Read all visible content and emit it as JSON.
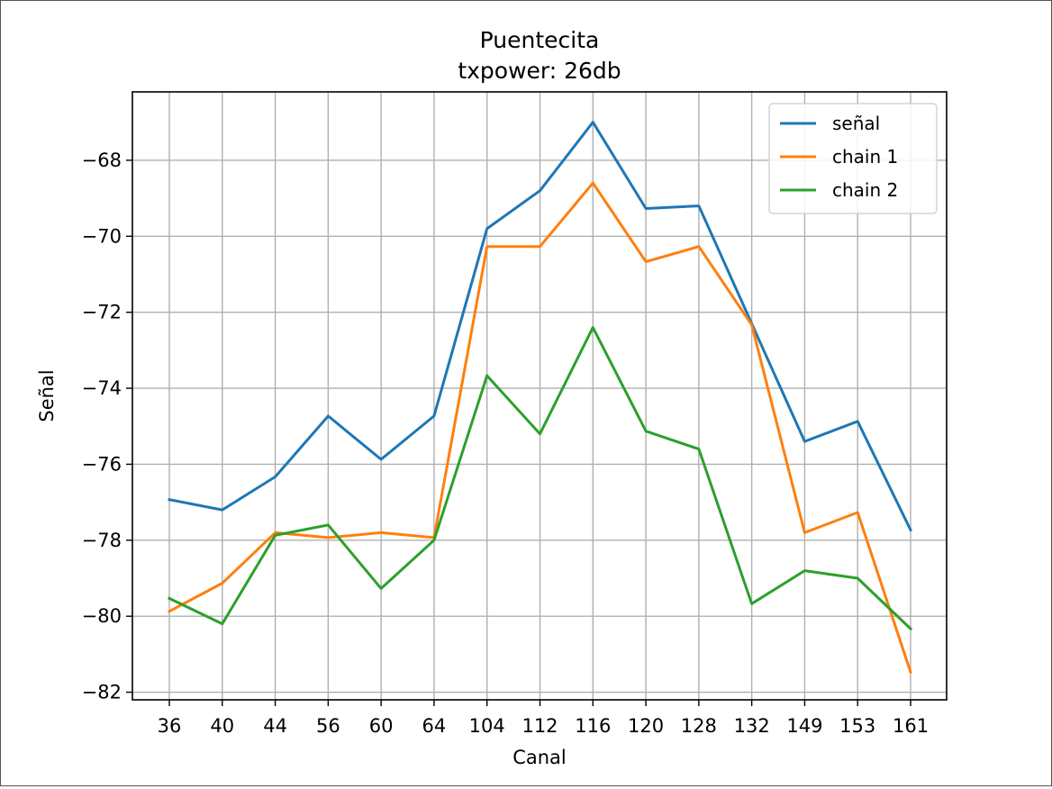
{
  "chart_data": {
    "type": "line",
    "title": "Puentecita",
    "subtitle": "txpower: 26db",
    "xlabel": "Canal",
    "ylabel": "Señal",
    "categories": [
      "36",
      "40",
      "44",
      "56",
      "60",
      "64",
      "104",
      "112",
      "116",
      "120",
      "128",
      "132",
      "149",
      "153",
      "161"
    ],
    "ylim": [
      -82.2,
      -66.2
    ],
    "yticks": [
      -82,
      -80,
      -78,
      -76,
      -74,
      -72,
      -70,
      -68
    ],
    "grid": true,
    "legend_position": "top-right",
    "series": [
      {
        "name": "señal",
        "color": "#1f77b4",
        "values": [
          -76.93,
          -77.2,
          -76.33,
          -74.73,
          -75.87,
          -74.73,
          -69.8,
          -68.8,
          -67.0,
          -69.27,
          -69.2,
          -72.3,
          -75.4,
          -74.87,
          -77.73
        ]
      },
      {
        "name": "chain 1",
        "color": "#ff7f0e",
        "values": [
          -79.87,
          -79.13,
          -77.8,
          -77.93,
          -77.8,
          -77.93,
          -70.27,
          -70.27,
          -68.6,
          -70.67,
          -70.27,
          -72.33,
          -77.8,
          -77.27,
          -81.47
        ]
      },
      {
        "name": "chain 2",
        "color": "#2ca02c",
        "values": [
          -79.53,
          -80.2,
          -77.87,
          -77.6,
          -79.27,
          -78.0,
          -73.67,
          -75.2,
          -72.4,
          -75.13,
          -75.6,
          -79.67,
          -78.8,
          -79.0,
          -80.33
        ]
      }
    ]
  }
}
